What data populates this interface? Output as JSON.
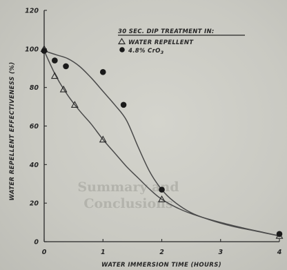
{
  "colors": {
    "background": "#cbcbc4",
    "ink": "#262626",
    "curve": "#4a4a4a",
    "bleed_text": "#b3b3ac"
  },
  "bleed_through": {
    "line1": "Summary and",
    "line2": "Conclusions"
  },
  "chart_data": {
    "type": "scatter",
    "title": "30 SEC. DIP TREATMENT IN:",
    "xlabel": "WATER IMMERSION TIME (HOURS)",
    "ylabel": "WATER REPELLENT EFFECTIVENESS (%)",
    "xlim": [
      0,
      4
    ],
    "ylim": [
      0,
      120
    ],
    "x_ticks": [
      0,
      1,
      2,
      3,
      4
    ],
    "y_ticks": [
      0,
      20,
      40,
      60,
      80,
      100,
      120
    ],
    "grid": false,
    "legend_position": "top-right",
    "series": [
      {
        "name": "WATER REPELLENT",
        "marker": "open-triangle",
        "points": [
          {
            "x": 0,
            "y": 100
          },
          {
            "x": 0.18,
            "y": 86
          },
          {
            "x": 0.33,
            "y": 79
          },
          {
            "x": 0.52,
            "y": 71
          },
          {
            "x": 1.0,
            "y": 53
          },
          {
            "x": 2.0,
            "y": 22
          },
          {
            "x": 4.0,
            "y": 3
          }
        ],
        "curve": [
          [
            0,
            99
          ],
          [
            0.2,
            86
          ],
          [
            0.4,
            76
          ],
          [
            0.6,
            68
          ],
          [
            0.8,
            61
          ],
          [
            1.0,
            53
          ],
          [
            1.2,
            46
          ],
          [
            1.4,
            39
          ],
          [
            1.6,
            33
          ],
          [
            1.8,
            27
          ],
          [
            2.0,
            22
          ],
          [
            2.3,
            17
          ],
          [
            2.6,
            13.5
          ],
          [
            3.0,
            10
          ],
          [
            3.4,
            7
          ],
          [
            3.7,
            5
          ],
          [
            4.0,
            3
          ]
        ]
      },
      {
        "name": "4.8% CrO3",
        "marker": "filled-circle",
        "points": [
          {
            "x": 0,
            "y": 99
          },
          {
            "x": 0.18,
            "y": 94
          },
          {
            "x": 0.37,
            "y": 91
          },
          {
            "x": 1.0,
            "y": 88
          },
          {
            "x": 1.35,
            "y": 71
          },
          {
            "x": 2.0,
            "y": 27
          },
          {
            "x": 4.0,
            "y": 4
          }
        ],
        "curve": [
          [
            0,
            99
          ],
          [
            0.2,
            97
          ],
          [
            0.4,
            95
          ],
          [
            0.6,
            91
          ],
          [
            0.8,
            85
          ],
          [
            1.0,
            78
          ],
          [
            1.2,
            71
          ],
          [
            1.4,
            63
          ],
          [
            1.6,
            49
          ],
          [
            1.8,
            36
          ],
          [
            2.0,
            27
          ],
          [
            2.2,
            21
          ],
          [
            2.5,
            15
          ],
          [
            2.8,
            11.5
          ],
          [
            3.2,
            8
          ],
          [
            3.6,
            5.5
          ],
          [
            4.0,
            3
          ]
        ]
      }
    ]
  },
  "legend": {
    "header": "30 SEC. DIP TREATMENT IN:",
    "items": [
      {
        "symbol": "triangle",
        "label": "WATER REPELLENT"
      },
      {
        "symbol": "circle",
        "label": "4.8% CrO",
        "sub": "3"
      }
    ]
  }
}
